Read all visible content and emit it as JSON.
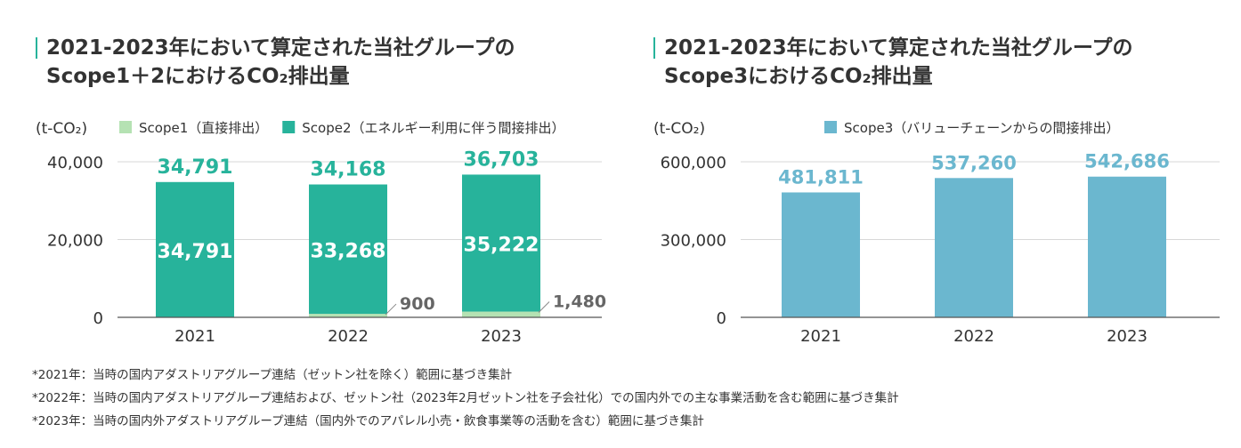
{
  "titles": {
    "left_line1": "2021-2023年において算定された当社グループの",
    "left_line2": "Scope1＋2におけるCO₂排出量",
    "right_line1": "2021-2023年において算定された当社グループの",
    "right_line2": "Scope3におけるCO₂排出量"
  },
  "colors": {
    "scope1": "#b5e2b3",
    "scope2": "#27b39b",
    "scope3": "#6bb7cf",
    "accent": "#27b39b"
  },
  "chart_data": [
    {
      "type": "bar",
      "stacked": true,
      "title": "2021-2023年において算定された当社グループの Scope1＋2におけるCO₂排出量",
      "unit": "(t-CO₂)",
      "categories": [
        "2021",
        "2022",
        "2023"
      ],
      "series": [
        {
          "name": "Scope1（直接排出）",
          "values": [
            0,
            900,
            1480
          ],
          "labels": [
            "",
            "900",
            "1,480"
          ]
        },
        {
          "name": "Scope2（エネルギー利用に伴う間接排出）",
          "values": [
            34791,
            33268,
            35222
          ],
          "labels": [
            "34,791",
            "33,268",
            "35,222"
          ]
        }
      ],
      "totals": [
        "34,791",
        "34,168",
        "36,703"
      ],
      "yticks": [
        "40,000",
        "20,000",
        "0"
      ],
      "ylim": [
        0,
        40000
      ],
      "grid": true,
      "legend": "top"
    },
    {
      "type": "bar",
      "title": "2021-2023年において算定された当社グループの Scope3におけるCO₂排出量",
      "unit": "(t-CO₂)",
      "categories": [
        "2021",
        "2022",
        "2023"
      ],
      "series": [
        {
          "name": "Scope3（バリューチェーンからの間接排出）",
          "values": [
            481811,
            537260,
            542686
          ],
          "labels": [
            "481,811",
            "537,260",
            "542,686"
          ]
        }
      ],
      "yticks": [
        "600,000",
        "300,000",
        "0"
      ],
      "ylim": [
        0,
        600000
      ],
      "grid": true,
      "legend": "top"
    }
  ],
  "notes": [
    "*2021年：当時の国内アダストリアグループ連結（ゼットン社を除く）範囲に基づき集計",
    "*2022年：当時の国内アダストリアグループ連結および、ゼットン社（2023年2月ゼットン社を子会社化）での国内外での主な事業活動を含む範囲に基づき集計",
    "*2023年：当時の国内外アダストリアグループ連結（国内外でのアパレル小売・飲食事業等の活動を含む）範囲に基づき集計"
  ]
}
